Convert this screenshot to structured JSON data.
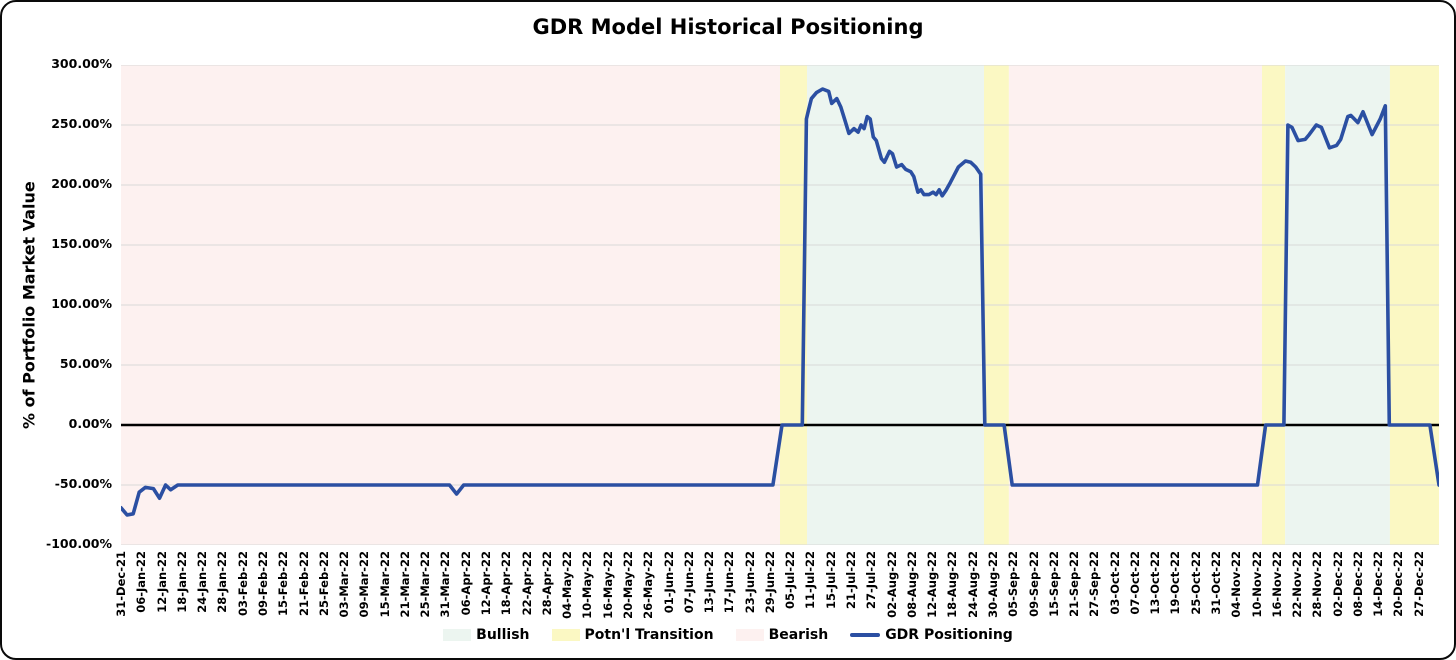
{
  "chart_data": {
    "type": "line",
    "title": "GDR Model Historical Positioning",
    "ylabel": "% of Portfolio Market Value",
    "xlabel": "",
    "grid": "horizontal",
    "legend_position": "bottom",
    "colors": {
      "bullish": "#ecf5f0",
      "transition": "#fbf8c3",
      "bearish": "#fdf1f0",
      "line": "#2b4fa2",
      "grid": "#d9d9d9",
      "zero_line": "#000000"
    },
    "y_axis": {
      "min": -100,
      "max": 300,
      "tick_values": [
        300,
        250,
        200,
        150,
        100,
        50,
        0,
        -50,
        -100
      ],
      "tick_labels": [
        "300.00%",
        "250.00%",
        "200.00%",
        "150.00%",
        "100.00%",
        "50.00%",
        "0.00%",
        "-50.00%",
        "-100.00%"
      ]
    },
    "x_axis": {
      "slots": 65,
      "labels": [
        "31-Dec-21",
        "06-Jan-22",
        "12-Jan-22",
        "18-Jan-22",
        "24-Jan-22",
        "28-Jan-22",
        "03-Feb-22",
        "09-Feb-22",
        "15-Feb-22",
        "21-Feb-22",
        "25-Feb-22",
        "03-Mar-22",
        "09-Mar-22",
        "15-Mar-22",
        "21-Mar-22",
        "25-Mar-22",
        "31-Mar-22",
        "06-Apr-22",
        "12-Apr-22",
        "18-Apr-22",
        "22-Apr-22",
        "28-Apr-22",
        "04-May-22",
        "10-May-22",
        "16-May-22",
        "20-May-22",
        "26-May-22",
        "01-Jun-22",
        "07-Jun-22",
        "13-Jun-22",
        "17-Jun-22",
        "23-Jun-22",
        "29-Jun-22",
        "05-Jul-22",
        "11-Jul-22",
        "15-Jul-22",
        "21-Jul-22",
        "27-Jul-22",
        "02-Aug-22",
        "08-Aug-22",
        "12-Aug-22",
        "18-Aug-22",
        "24-Aug-22",
        "30-Aug-22",
        "05-Sep-22",
        "09-Sep-22",
        "15-Sep-22",
        "21-Sep-22",
        "27-Sep-22",
        "03-Oct-22",
        "07-Oct-22",
        "13-Oct-22",
        "19-Oct-22",
        "25-Oct-22",
        "31-Oct-22",
        "04-Nov-22",
        "10-Nov-22",
        "16-Nov-22",
        "22-Nov-22",
        "28-Nov-22",
        "02-Dec-22",
        "08-Dec-22",
        "14-Dec-22",
        "20-Dec-22",
        "27-Dec-22"
      ]
    },
    "bands": [
      {
        "type": "bearish",
        "start": 0,
        "end": 32.5
      },
      {
        "type": "transition",
        "start": 32.5,
        "end": 33.83
      },
      {
        "type": "bullish",
        "start": 33.83,
        "end": 42.56
      },
      {
        "type": "transition",
        "start": 42.56,
        "end": 43.79
      },
      {
        "type": "bearish",
        "start": 43.79,
        "end": 56.27
      },
      {
        "type": "transition",
        "start": 56.27,
        "end": 57.41
      },
      {
        "type": "bullish",
        "start": 57.41,
        "end": 62.58
      },
      {
        "type": "transition",
        "start": 62.58,
        "end": 65
      }
    ],
    "series": [
      {
        "name": "GDR Positioning",
        "points": [
          [
            0,
            -69
          ],
          [
            0.3,
            -75
          ],
          [
            0.6,
            -74
          ],
          [
            0.9,
            -56
          ],
          [
            1.2,
            -52
          ],
          [
            1.6,
            -53
          ],
          [
            1.9,
            -61
          ],
          [
            2.2,
            -50
          ],
          [
            2.45,
            -54
          ],
          [
            2.8,
            -50
          ],
          [
            16.2,
            -50
          ],
          [
            16.55,
            -57.5
          ],
          [
            16.9,
            -50
          ],
          [
            32.15,
            -50
          ],
          [
            32.6,
            0
          ],
          [
            33.6,
            0
          ],
          [
            33.8,
            255
          ],
          [
            33.9,
            262
          ],
          [
            34.05,
            272
          ],
          [
            34.3,
            277
          ],
          [
            34.6,
            280
          ],
          [
            34.9,
            278
          ],
          [
            35.05,
            268
          ],
          [
            35.3,
            272
          ],
          [
            35.5,
            265
          ],
          [
            35.7,
            254
          ],
          [
            35.9,
            243
          ],
          [
            36.15,
            247
          ],
          [
            36.35,
            244
          ],
          [
            36.5,
            250
          ],
          [
            36.65,
            247
          ],
          [
            36.8,
            257
          ],
          [
            36.95,
            255
          ],
          [
            37.1,
            240
          ],
          [
            37.25,
            237
          ],
          [
            37.5,
            222
          ],
          [
            37.65,
            219
          ],
          [
            37.9,
            228
          ],
          [
            38.05,
            226
          ],
          [
            38.25,
            215
          ],
          [
            38.5,
            217
          ],
          [
            38.7,
            213
          ],
          [
            38.95,
            211
          ],
          [
            39.1,
            207
          ],
          [
            39.3,
            194
          ],
          [
            39.45,
            196
          ],
          [
            39.6,
            192
          ],
          [
            39.85,
            192
          ],
          [
            40.05,
            194
          ],
          [
            40.2,
            192
          ],
          [
            40.35,
            196
          ],
          [
            40.5,
            191
          ],
          [
            40.7,
            196
          ],
          [
            40.9,
            202
          ],
          [
            41.3,
            215
          ],
          [
            41.65,
            220
          ],
          [
            41.9,
            219
          ],
          [
            42.15,
            215
          ],
          [
            42.4,
            209
          ],
          [
            42.6,
            0
          ],
          [
            43.55,
            0
          ],
          [
            43.95,
            -50
          ],
          [
            56.05,
            -50
          ],
          [
            56.45,
            0
          ],
          [
            57.35,
            0
          ],
          [
            57.55,
            250
          ],
          [
            57.75,
            248
          ],
          [
            58.05,
            237
          ],
          [
            58.4,
            238
          ],
          [
            58.6,
            242
          ],
          [
            58.95,
            250
          ],
          [
            59.2,
            248
          ],
          [
            59.6,
            231
          ],
          [
            59.95,
            233
          ],
          [
            60.15,
            238
          ],
          [
            60.5,
            257
          ],
          [
            60.65,
            258
          ],
          [
            61.0,
            252
          ],
          [
            61.25,
            261
          ],
          [
            61.7,
            242
          ],
          [
            62.1,
            255
          ],
          [
            62.35,
            266
          ],
          [
            62.55,
            0
          ],
          [
            64.55,
            0
          ],
          [
            65,
            -50
          ]
        ]
      }
    ],
    "legend": [
      {
        "label": "Bullish",
        "swatch": "area",
        "color_key": "bullish"
      },
      {
        "label": "Potn'l Transition",
        "swatch": "area",
        "color_key": "transition"
      },
      {
        "label": "Bearish",
        "swatch": "area",
        "color_key": "bearish"
      },
      {
        "label": "GDR Positioning",
        "swatch": "line",
        "color_key": "line"
      }
    ]
  }
}
